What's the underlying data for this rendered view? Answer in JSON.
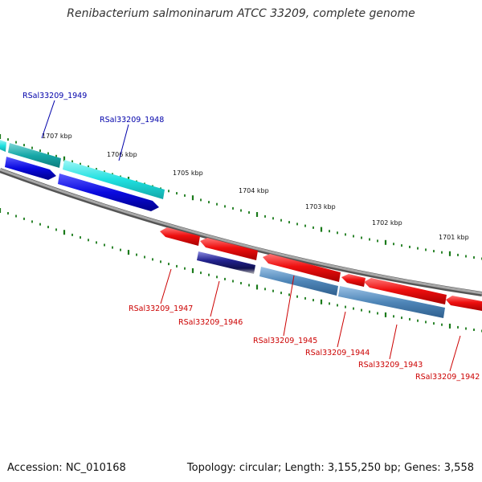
{
  "title": "Renibacterium salmoninarum ATCC 33209, complete genome",
  "footer": {
    "accession": "Accession: NC_010168",
    "topology": "Topology: circular; Length: 3,155,250 bp; Genes: 3,558"
  },
  "kbp_ticks": [
    {
      "label": "1707 kbp"
    },
    {
      "label": "1706 kbp"
    },
    {
      "label": "1705 kbp"
    },
    {
      "label": "1704 kbp"
    },
    {
      "label": "1703 kbp"
    },
    {
      "label": "1702 kbp"
    },
    {
      "label": "1701 kbp"
    }
  ],
  "genes": [
    {
      "label": "RSal33209_1949",
      "color": "#0000aa"
    },
    {
      "label": "RSal33209_1948",
      "color": "#0000aa"
    },
    {
      "label": "RSal33209_1947",
      "color": "#cc0000"
    },
    {
      "label": "RSal33209_1946",
      "color": "#cc0000"
    },
    {
      "label": "RSal33209_1945",
      "color": "#cc0000"
    },
    {
      "label": "RSal33209_1944",
      "color": "#cc0000"
    },
    {
      "label": "RSal33209_1943",
      "color": "#cc0000"
    },
    {
      "label": "RSal33209_1942",
      "color": "#cc0000"
    }
  ],
  "colors": {
    "backbone": "#888888",
    "tick": "#1a7a1a",
    "cyan_feature": "#29e6e6",
    "blue_feature": "#1010e0",
    "red_feature": "#ee1111",
    "steel_feature": "#4f86b8",
    "navy_feature": "#1b1b8a"
  }
}
